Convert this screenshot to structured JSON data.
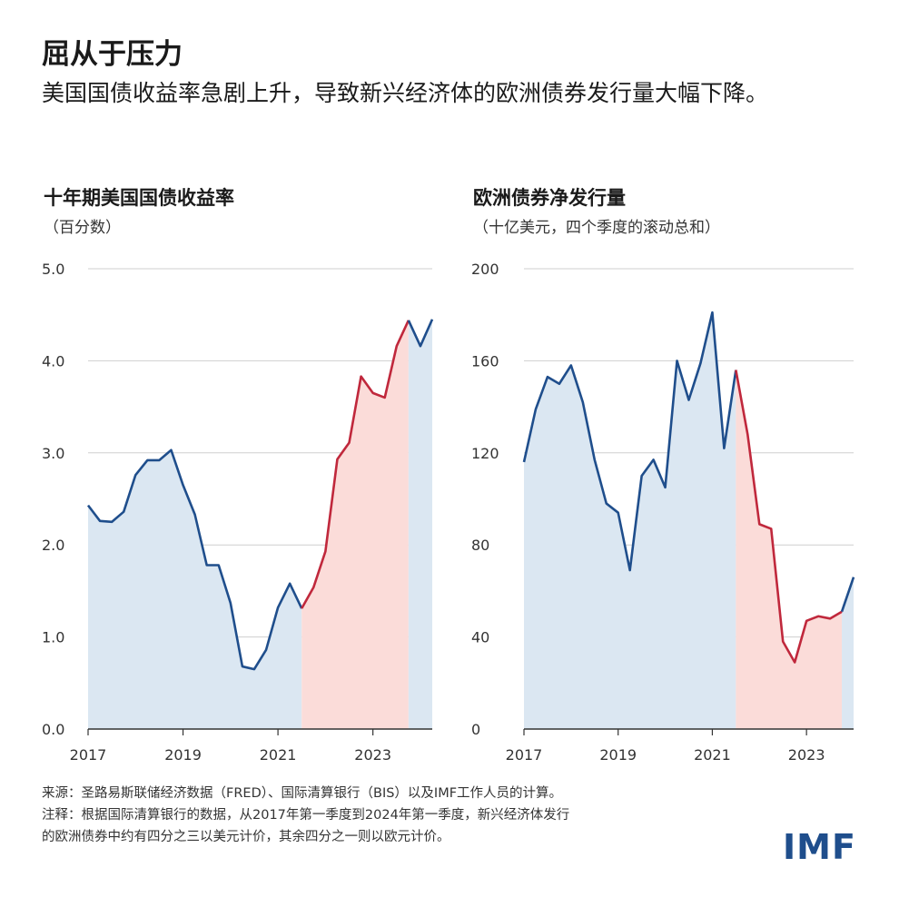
{
  "title": "屈从于压力",
  "subtitle": "美国国债收益率急剧上升，导致新兴经济体的欧洲债券发行量大幅下降。",
  "colors": {
    "blue_line": "#1f4e8c",
    "red_line": "#c0283c",
    "blue_fill": "#dbe7f2",
    "red_fill": "#fbdcd9",
    "grid": "#cfcfcf"
  },
  "footer": {
    "source": "来源：圣路易斯联储经济数据（FRED）、国际清算银行（BIS）以及IMF工作人员的计算。",
    "note_line1": "注释：根据国际清算银行的数据，从2017年第一季度到2024年第一季度，新兴经济体发行",
    "note_line2": "的欧洲债券中约有四分之三以美元计价，其余四分之一则以欧元计价。"
  },
  "logo": "IMF",
  "chart_data": [
    {
      "type": "area",
      "title": "十年期美国国债收益率",
      "subtitle": "（百分数）",
      "ylim": [
        0,
        5
      ],
      "yticks": [
        "0.0",
        "1.0",
        "2.0",
        "3.0",
        "4.0",
        "5.0"
      ],
      "xticks": [
        "2017",
        "2019",
        "2021",
        "2023"
      ],
      "xlim": [
        2017.0,
        2024.25
      ],
      "grid": true,
      "red_range": [
        2021.5,
        2023.75
      ],
      "series": [
        {
          "x": [
            2017.0,
            2017.25,
            2017.5,
            2017.75,
            2018.0,
            2018.25,
            2018.5,
            2018.75,
            2019.0,
            2019.25,
            2019.5,
            2019.75,
            2020.0,
            2020.25,
            2020.5,
            2020.75,
            2021.0,
            2021.25,
            2021.5,
            2021.75,
            2022.0,
            2022.25,
            2022.5,
            2022.75,
            2023.0,
            2023.25,
            2023.5,
            2023.75,
            2024.0,
            2024.25
          ],
          "y": [
            2.43,
            2.26,
            2.25,
            2.36,
            2.76,
            2.92,
            2.92,
            3.03,
            2.65,
            2.33,
            1.78,
            1.78,
            1.37,
            0.68,
            0.65,
            0.86,
            1.32,
            1.58,
            1.31,
            1.54,
            1.93,
            2.93,
            3.11,
            3.83,
            3.65,
            3.6,
            4.16,
            4.44,
            4.16,
            4.45
          ]
        }
      ]
    },
    {
      "type": "area",
      "title": "欧洲债券净发行量",
      "subtitle": "（十亿美元，四个季度的滚动总和）",
      "ylim": [
        0,
        200
      ],
      "yticks": [
        "0",
        "40",
        "80",
        "120",
        "160",
        "200"
      ],
      "xticks": [
        "2017",
        "2019",
        "2021",
        "2023"
      ],
      "xlim": [
        2017.0,
        2024.0
      ],
      "grid": true,
      "red_range": [
        2021.5,
        2023.75
      ],
      "series": [
        {
          "x": [
            2017.0,
            2017.25,
            2017.5,
            2017.75,
            2018.0,
            2018.25,
            2018.5,
            2018.75,
            2019.0,
            2019.25,
            2019.5,
            2019.75,
            2020.0,
            2020.25,
            2020.5,
            2020.75,
            2021.0,
            2021.25,
            2021.5,
            2021.75,
            2022.0,
            2022.25,
            2022.5,
            2022.75,
            2023.0,
            2023.25,
            2023.5,
            2023.75,
            2024.0
          ],
          "y": [
            116,
            139,
            153,
            150,
            158,
            142,
            117,
            98,
            94,
            69,
            110,
            117,
            105,
            160,
            143,
            159,
            181,
            122,
            156,
            128,
            89,
            87,
            38,
            29,
            47,
            49,
            48,
            51,
            66
          ]
        }
      ]
    }
  ]
}
